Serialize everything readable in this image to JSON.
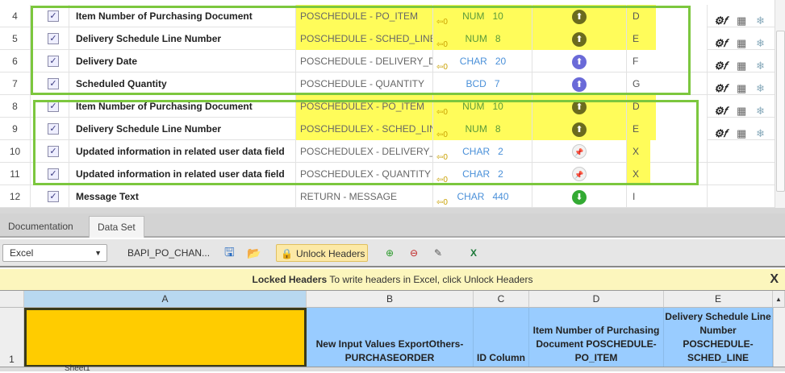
{
  "rows": [
    {
      "num": "4",
      "desc": "Item Number of Purchasing Document",
      "map": "POSCHEDULE - PO_ITEM",
      "type": "NUM",
      "len": "10",
      "dir": "up",
      "col": "D",
      "hl": true,
      "tools": true,
      "in": true
    },
    {
      "num": "5",
      "desc": "Delivery Schedule Line Number",
      "map": "POSCHEDULE - SCHED_LINE",
      "type": "NUM",
      "len": "8",
      "dir": "up",
      "col": "E",
      "hl": true,
      "tools": true,
      "in": true
    },
    {
      "num": "6",
      "desc": "Delivery Date",
      "map": "POSCHEDULE - DELIVERY_DA...",
      "type": "CHAR",
      "len": "20",
      "dir": "up-blue",
      "col": "F",
      "tools": true,
      "in": true
    },
    {
      "num": "7",
      "desc": "Scheduled Quantity",
      "map": "POSCHEDULE - QUANTITY",
      "type": "BCD",
      "len": "7",
      "dir": "up-blue",
      "col": "G",
      "tools": true,
      "in": false
    },
    {
      "num": "8",
      "desc": "Item Number of Purchasing Document",
      "map": "POSCHEDULEX - PO_ITEM",
      "type": "NUM",
      "len": "10",
      "dir": "up",
      "col": "D",
      "hl": true,
      "tools": true,
      "in": true
    },
    {
      "num": "9",
      "desc": "Delivery Schedule Line Number",
      "map": "POSCHEDULEX - SCHED_LINE",
      "type": "NUM",
      "len": "8",
      "dir": "up",
      "col": "E",
      "hl": true,
      "tools": true,
      "in": true
    },
    {
      "num": "10",
      "desc": "Updated information in related user data field",
      "map": "POSCHEDULEX - DELIVERY_D...",
      "type": "CHAR",
      "len": "2",
      "dir": "pin",
      "col": "X",
      "colhl": true,
      "in": true
    },
    {
      "num": "11",
      "desc": "Updated information in related user data field",
      "map": "POSCHEDULEX - QUANTITY",
      "type": "CHAR",
      "len": "2",
      "dir": "pin",
      "col": "X",
      "colhl": true,
      "in": true
    },
    {
      "num": "12",
      "desc": "Message Text",
      "map": "RETURN - MESSAGE",
      "type": "CHAR",
      "len": "440",
      "dir": "down",
      "col": "I",
      "in": true
    }
  ],
  "colors": {
    "highlight": "#fffc5a",
    "box": "#7cc73e",
    "excel_header": "#99ccff",
    "selected_cell": "#ffcc00"
  },
  "tabs": [
    "Documentation",
    "Data Set"
  ],
  "active_tab": "Data Set",
  "toolbar": {
    "format": "Excel",
    "file": "BAPI_PO_CHAN...",
    "unlock": "Unlock Headers"
  },
  "banner": {
    "title": "Locked Headers",
    "text": "To write headers in Excel, click Unlock Headers",
    "close": "X"
  },
  "sheet": {
    "columns": [
      "A",
      "B",
      "C",
      "D",
      "E"
    ],
    "row_num": "1",
    "cells": [
      "",
      "New Input Values ExportOthers-PURCHASEORDER",
      "ID Column",
      "Item Number of Purchasing Document POSCHEDULE-PO_ITEM",
      "Delivery Schedule Line Number POSCHEDULE-SCHED_LINE"
    ],
    "sheet_tab": "Sheet1"
  }
}
